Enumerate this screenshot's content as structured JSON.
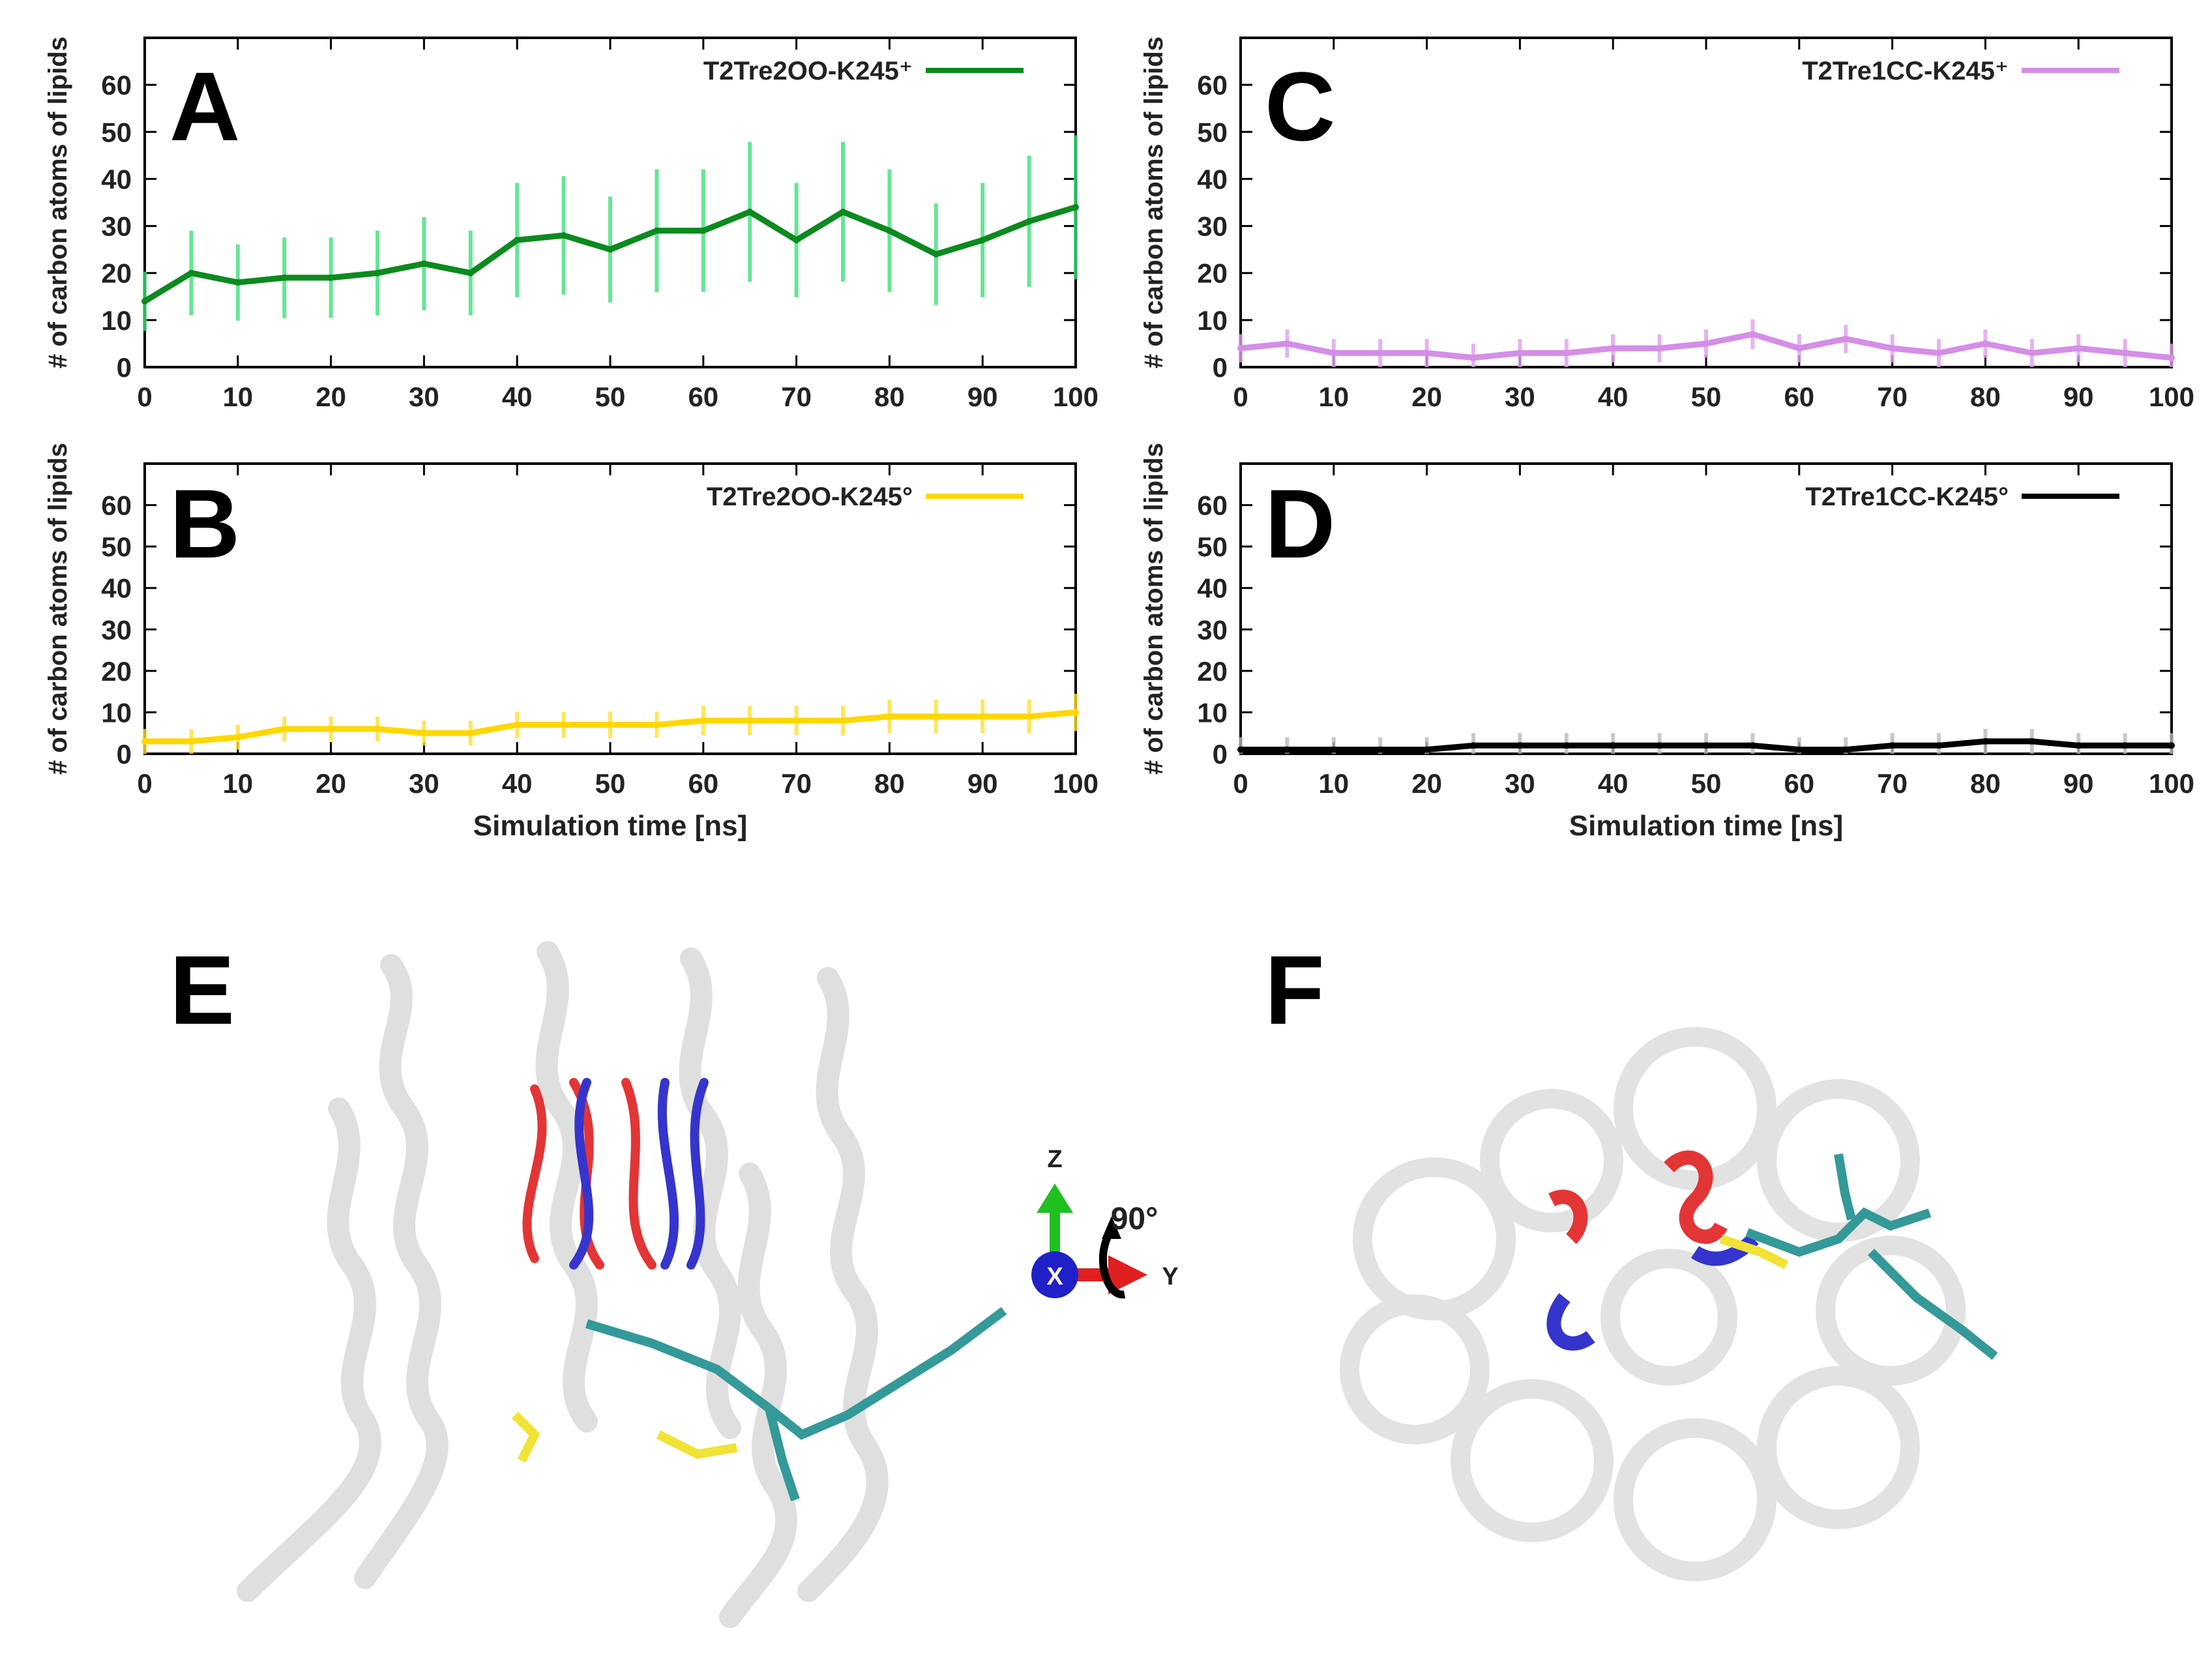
{
  "colors": {
    "A_line": "#0b8a1e",
    "A_err": "#3fe07a",
    "B_line": "#ffd700",
    "B_err": "#ffe033",
    "C_line": "#d58ee8",
    "C_err": "#e0a0f0",
    "D_line": "#000000",
    "D_err": "#bbbbbb",
    "helix": "#bdbdbd",
    "red": "#e02020",
    "blue": "#2020c8",
    "lipid": "#1f8f8f",
    "yellow": "#f0e020",
    "axis_green": "#20c020"
  },
  "panel_labels": {
    "A": "A",
    "B": "B",
    "C": "C",
    "D": "D",
    "E": "E",
    "F": "F"
  },
  "orientation": {
    "z": "Z",
    "x": "X",
    "y": "Y",
    "rotation": "90°"
  },
  "chart_data": [
    {
      "panel": "A",
      "type": "line",
      "series": [
        {
          "name": "T2Tre2OO-K245⁺",
          "x": [
            0,
            5,
            10,
            15,
            20,
            25,
            30,
            35,
            40,
            45,
            50,
            55,
            60,
            65,
            70,
            75,
            80,
            85,
            90,
            95,
            100
          ],
          "y": [
            14,
            20,
            18,
            19,
            19,
            20,
            22,
            20,
            27,
            28,
            25,
            29,
            29,
            33,
            27,
            33,
            29,
            24,
            27,
            31,
            34
          ]
        }
      ],
      "xlabel": "",
      "ylabel": "# of carbon atoms of lipids",
      "xlim": [
        0,
        100
      ],
      "ylim": [
        0,
        70
      ],
      "xticks": [
        "0",
        "10",
        "20",
        "30",
        "40",
        "50",
        "60",
        "70",
        "80",
        "90",
        "100"
      ],
      "yticks": [
        "0",
        "10",
        "20",
        "30",
        "40",
        "50",
        "60"
      ]
    },
    {
      "panel": "B",
      "type": "line",
      "series": [
        {
          "name": "T2Tre2OO-K245°",
          "x": [
            0,
            5,
            10,
            15,
            20,
            25,
            30,
            35,
            40,
            45,
            50,
            55,
            60,
            65,
            70,
            75,
            80,
            85,
            90,
            95,
            100
          ],
          "y": [
            3,
            3,
            4,
            6,
            6,
            6,
            5,
            5,
            7,
            7,
            7,
            7,
            8,
            8,
            8,
            8,
            9,
            9,
            9,
            9,
            10
          ]
        }
      ],
      "xlabel": "Simulation time [ns]",
      "ylabel": "# of carbon atoms of lipids",
      "xlim": [
        0,
        100
      ],
      "ylim": [
        0,
        70
      ],
      "xticks": [
        "0",
        "10",
        "20",
        "30",
        "40",
        "50",
        "60",
        "70",
        "80",
        "90",
        "100"
      ],
      "yticks": [
        "0",
        "10",
        "20",
        "30",
        "40",
        "50",
        "60"
      ]
    },
    {
      "panel": "C",
      "type": "line",
      "series": [
        {
          "name": "T2Tre1CC-K245⁺",
          "x": [
            0,
            5,
            10,
            15,
            20,
            25,
            30,
            35,
            40,
            45,
            50,
            55,
            60,
            65,
            70,
            75,
            80,
            85,
            90,
            95,
            100
          ],
          "y": [
            4,
            5,
            3,
            3,
            3,
            2,
            3,
            3,
            4,
            4,
            5,
            7,
            4,
            6,
            4,
            3,
            5,
            3,
            4,
            3,
            2
          ]
        }
      ],
      "xlabel": "",
      "ylabel": "# of carbon atoms of lipids",
      "xlim": [
        0,
        100
      ],
      "ylim": [
        0,
        70
      ],
      "xticks": [
        "0",
        "10",
        "20",
        "30",
        "40",
        "50",
        "60",
        "70",
        "80",
        "90",
        "100"
      ],
      "yticks": [
        "0",
        "10",
        "20",
        "30",
        "40",
        "50",
        "60"
      ]
    },
    {
      "panel": "D",
      "type": "line",
      "series": [
        {
          "name": "T2Tre1CC-K245°",
          "x": [
            0,
            5,
            10,
            15,
            20,
            25,
            30,
            35,
            40,
            45,
            50,
            55,
            60,
            65,
            70,
            75,
            80,
            85,
            90,
            95,
            100
          ],
          "y": [
            1,
            1,
            1,
            1,
            1,
            2,
            2,
            2,
            2,
            2,
            2,
            2,
            1,
            1,
            2,
            2,
            3,
            3,
            2,
            2,
            2
          ]
        }
      ],
      "xlabel": "Simulation time [ns]",
      "ylabel": "# of carbon atoms of lipids",
      "xlim": [
        0,
        100
      ],
      "ylim": [
        0,
        70
      ],
      "xticks": [
        "0",
        "10",
        "20",
        "30",
        "40",
        "50",
        "60",
        "70",
        "80",
        "90",
        "100"
      ],
      "yticks": [
        "0",
        "10",
        "20",
        "30",
        "40",
        "50",
        "60"
      ]
    }
  ]
}
